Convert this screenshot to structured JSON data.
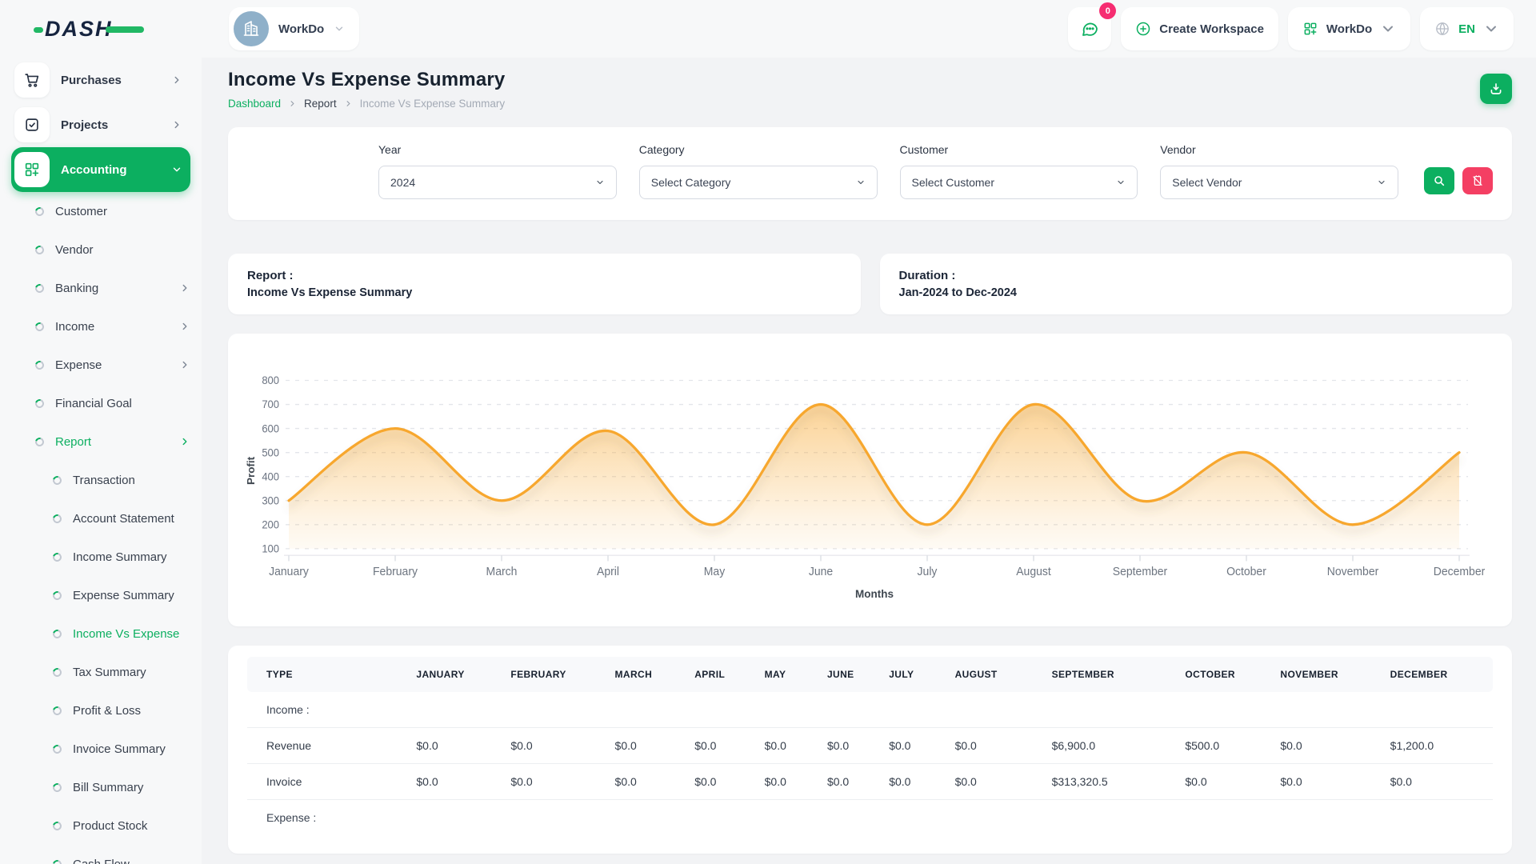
{
  "brand": {
    "logo_text": "DASH"
  },
  "topbar": {
    "workspace_name": "WorkDo",
    "messages_badge": "0",
    "create_workspace_label": "Create Workspace",
    "workspace_switcher_label": "WorkDo",
    "language_label": "EN"
  },
  "sidebar": {
    "items": [
      {
        "label": "Purchases",
        "icon": "cart-icon",
        "level": 0,
        "chevron": "right"
      },
      {
        "label": "Projects",
        "icon": "check-square-icon",
        "level": 0,
        "chevron": "right"
      },
      {
        "label": "Accounting",
        "icon": "modules-icon",
        "level": 0,
        "chevron": "down",
        "active": true
      },
      {
        "label": "Customer",
        "level": 1
      },
      {
        "label": "Vendor",
        "level": 1
      },
      {
        "label": "Banking",
        "level": 1,
        "chevron": "right"
      },
      {
        "label": "Income",
        "level": 1,
        "chevron": "right"
      },
      {
        "label": "Expense",
        "level": 1,
        "chevron": "right"
      },
      {
        "label": "Financial Goal",
        "level": 1
      },
      {
        "label": "Report",
        "level": 1,
        "chevron": "right",
        "active": true
      },
      {
        "label": "Transaction",
        "level": 2
      },
      {
        "label": "Account Statement",
        "level": 2
      },
      {
        "label": "Income Summary",
        "level": 2
      },
      {
        "label": "Expense Summary",
        "level": 2
      },
      {
        "label": "Income Vs Expense",
        "level": 2,
        "active": true
      },
      {
        "label": "Tax Summary",
        "level": 2
      },
      {
        "label": "Profit & Loss",
        "level": 2
      },
      {
        "label": "Invoice Summary",
        "level": 2
      },
      {
        "label": "Bill Summary",
        "level": 2
      },
      {
        "label": "Product Stock",
        "level": 2
      },
      {
        "label": "Cash Flow",
        "level": 2
      }
    ]
  },
  "page": {
    "title": "Income Vs Expense Summary",
    "breadcrumb": [
      {
        "label": "Dashboard"
      },
      {
        "label": "Report"
      },
      {
        "label": "Income Vs Expense Summary"
      }
    ]
  },
  "filters": {
    "fields": [
      {
        "label": "Year",
        "value": "2024"
      },
      {
        "label": "Category",
        "value": "Select Category"
      },
      {
        "label": "Customer",
        "value": "Select Customer"
      },
      {
        "label": "Vendor",
        "value": "Select Vendor"
      }
    ]
  },
  "summary_cards": {
    "report": {
      "title": "Report :",
      "value": "Income Vs Expense Summary"
    },
    "duration": {
      "title": "Duration :",
      "value": "Jan-2024 to Dec-2024"
    }
  },
  "chart_data": {
    "type": "area",
    "x": [
      "January",
      "February",
      "March",
      "April",
      "May",
      "June",
      "July",
      "August",
      "September",
      "October",
      "November",
      "December"
    ],
    "series": [
      {
        "name": "Profit",
        "values": [
          300,
          600,
          300,
          590,
          200,
          700,
          200,
          700,
          300,
          500,
          200,
          500
        ]
      }
    ],
    "xlabel": "Months",
    "ylabel": "Profit",
    "ylim": [
      100,
      800
    ],
    "yticks": [
      100,
      200,
      300,
      400,
      500,
      600,
      700,
      800
    ],
    "grid": "horizontal-dashed",
    "legend": "none",
    "line_color": "#f7a72e"
  },
  "table": {
    "columns": [
      "TYPE",
      "JANUARY",
      "FEBRUARY",
      "MARCH",
      "APRIL",
      "MAY",
      "JUNE",
      "JULY",
      "AUGUST",
      "SEPTEMBER",
      "OCTOBER",
      "NOVEMBER",
      "DECEMBER"
    ],
    "sections": [
      {
        "label": "Income :",
        "rows": [
          {
            "type": "Revenue",
            "values": [
              "$0.0",
              "$0.0",
              "$0.0",
              "$0.0",
              "$0.0",
              "$0.0",
              "$0.0",
              "$0.0",
              "$6,900.0",
              "$500.0",
              "$0.0",
              "$1,200.0"
            ]
          },
          {
            "type": "Invoice",
            "values": [
              "$0.0",
              "$0.0",
              "$0.0",
              "$0.0",
              "$0.0",
              "$0.0",
              "$0.0",
              "$0.0",
              "$313,320.5",
              "$0.0",
              "$0.0",
              "$0.0"
            ]
          }
        ]
      },
      {
        "label": "Expense :",
        "rows": []
      }
    ]
  },
  "colors": {
    "accent_green": "#0caf60",
    "accent_pink": "#f43f63",
    "badge_pink": "#f62d71",
    "chart_orange": "#f7a72e"
  }
}
